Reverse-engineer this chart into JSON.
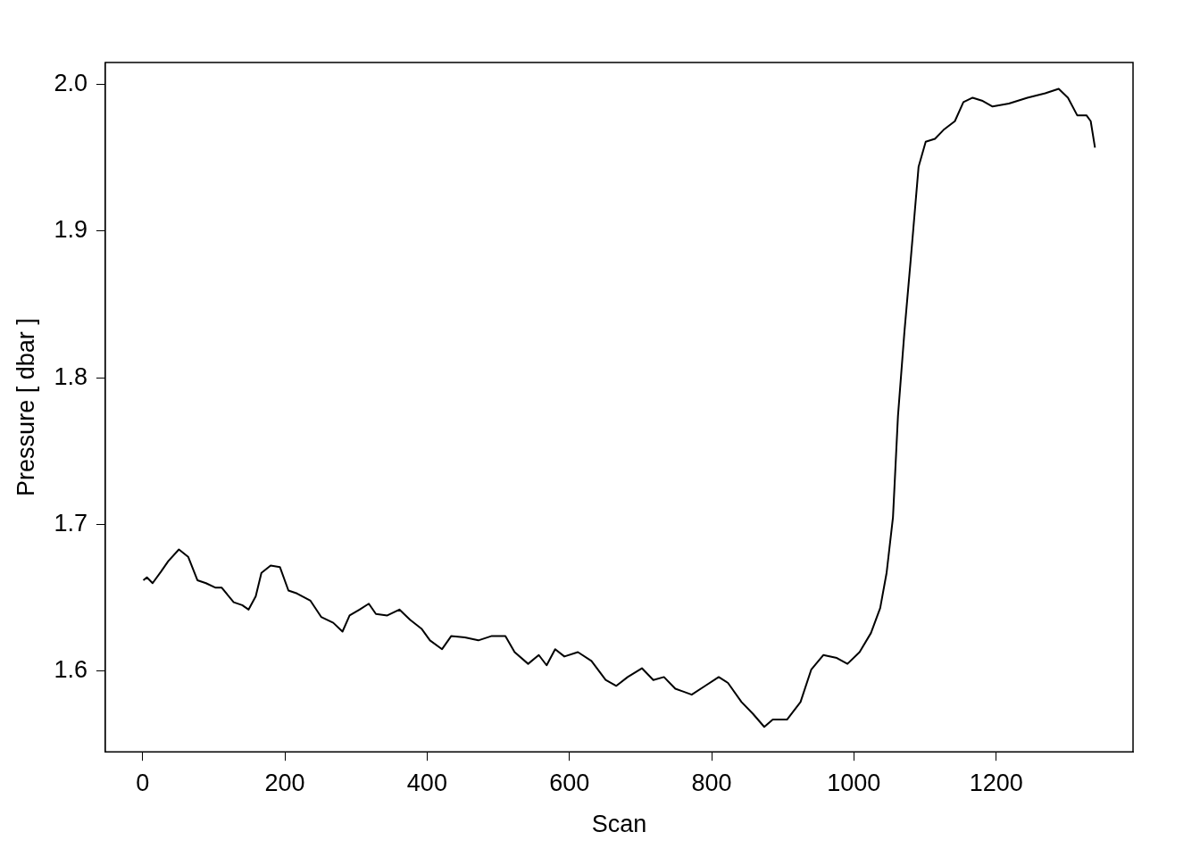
{
  "chart_data": {
    "type": "line",
    "xlabel": "Scan",
    "ylabel": "Pressure [ dbar ]",
    "color": "#000000",
    "grid": false,
    "legend": false,
    "marker": "none",
    "line_style": "solid",
    "xlim": [
      -52.5,
      1392.5
    ],
    "xticks": [
      0,
      200,
      400,
      600,
      800,
      1000,
      1200
    ],
    "ylim": [
      1.545,
      2.015
    ],
    "yticks": [
      {
        "value": 1.6,
        "label": "1.6"
      },
      {
        "value": 1.7,
        "label": "1.7"
      },
      {
        "value": 1.8,
        "label": "1.8"
      },
      {
        "value": 1.9,
        "label": "1.9"
      },
      {
        "value": 2.0,
        "label": "2.0"
      }
    ],
    "x": [
      1,
      6,
      14,
      26,
      36,
      51,
      64,
      77,
      89,
      102,
      111,
      128,
      140,
      149,
      159,
      167,
      180,
      193,
      205,
      217,
      236,
      251,
      268,
      281,
      291,
      305,
      318,
      328,
      344,
      361,
      376,
      392,
      404,
      421,
      434,
      453,
      472,
      491,
      510,
      523,
      542,
      557,
      568,
      580,
      593,
      612,
      631,
      651,
      666,
      682,
      702,
      718,
      733,
      749,
      772,
      791,
      810,
      823,
      842,
      858,
      874,
      886,
      906,
      925,
      940,
      957,
      976,
      991,
      1008,
      1024,
      1037,
      1046,
      1055,
      1062,
      1071,
      1080,
      1091,
      1101,
      1114,
      1126,
      1142,
      1154,
      1167,
      1180,
      1195,
      1218,
      1244,
      1269,
      1288,
      1301,
      1314,
      1327,
      1333,
      1339
    ],
    "values": [
      1.662,
      1.664,
      1.66,
      1.668,
      1.675,
      1.683,
      1.678,
      1.662,
      1.66,
      1.657,
      1.657,
      1.647,
      1.645,
      1.642,
      1.651,
      1.667,
      1.672,
      1.671,
      1.655,
      1.653,
      1.648,
      1.637,
      1.633,
      1.627,
      1.638,
      1.642,
      1.646,
      1.639,
      1.638,
      1.642,
      1.635,
      1.629,
      1.621,
      1.615,
      1.624,
      1.623,
      1.621,
      1.624,
      1.624,
      1.613,
      1.605,
      1.611,
      1.604,
      1.615,
      1.61,
      1.613,
      1.607,
      1.594,
      1.59,
      1.596,
      1.602,
      1.594,
      1.596,
      1.588,
      1.584,
      1.59,
      1.596,
      1.592,
      1.579,
      1.571,
      1.562,
      1.567,
      1.567,
      1.579,
      1.601,
      1.611,
      1.609,
      1.605,
      1.613,
      1.626,
      1.643,
      1.667,
      1.705,
      1.774,
      1.831,
      1.881,
      1.944,
      1.961,
      1.963,
      1.969,
      1.975,
      1.988,
      1.991,
      1.989,
      1.985,
      1.987,
      1.991,
      1.994,
      1.997,
      1.991,
      1.979,
      1.979,
      1.975,
      1.957
    ]
  }
}
